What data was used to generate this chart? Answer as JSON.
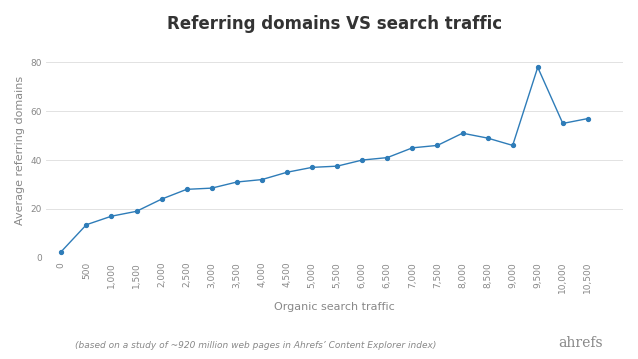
{
  "title": "Referring domains VS search traffic",
  "xlabel": "Organic search traffic",
  "ylabel": "Average referring domains",
  "subtitle": "(based on a study of ~920 million web pages in Ahrefs’ Content Explorer index)",
  "ahrefs_label": "ahrefs",
  "x_plot": [
    0,
    500,
    1000,
    1500,
    2000,
    2500,
    3000,
    3500,
    4000,
    4500,
    5000,
    5500,
    6000,
    6500,
    7000,
    7500,
    8000,
    8500,
    9000,
    9500,
    10000,
    10500
  ],
  "y_plot": [
    2.5,
    13.5,
    17,
    19,
    24,
    28,
    28.5,
    31,
    32,
    35,
    37,
    37.5,
    40,
    41,
    45,
    46,
    51,
    49,
    46,
    78,
    55,
    57
  ],
  "line_color": "#2e7cb8",
  "background_color": "#ffffff",
  "grid_color": "#dddddd",
  "text_color": "#888888",
  "title_color": "#333333",
  "ylim": [
    0,
    88
  ],
  "yticks": [
    0,
    20,
    40,
    60,
    80
  ],
  "xlim": [
    -300,
    11200
  ],
  "title_fontsize": 12,
  "axis_label_fontsize": 8,
  "tick_fontsize": 6.5,
  "subtitle_fontsize": 6.5,
  "ahrefs_fontsize": 10
}
